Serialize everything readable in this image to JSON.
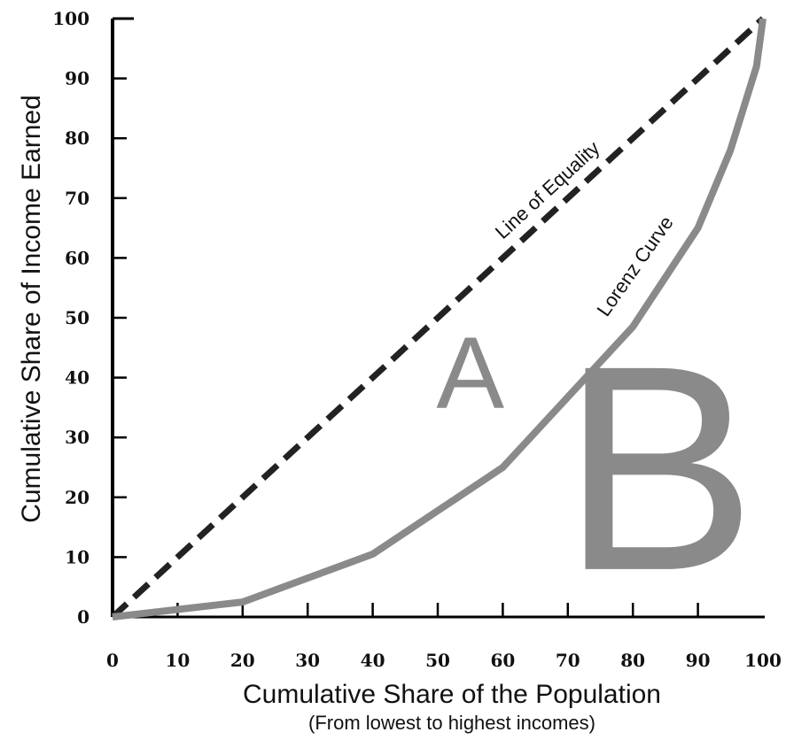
{
  "chart_data": {
    "type": "line",
    "xlabel": "Cumulative Share of the Population",
    "xlabel_sub": "(From lowest to highest incomes)",
    "ylabel": "Cumulative Share of Income Earned",
    "xlim": [
      0,
      100
    ],
    "ylim": [
      0,
      100
    ],
    "x_ticks": [
      0,
      10,
      20,
      30,
      40,
      50,
      60,
      70,
      80,
      90,
      100
    ],
    "y_ticks": [
      0,
      10,
      20,
      30,
      40,
      50,
      60,
      70,
      80,
      90,
      100
    ],
    "grid": false,
    "series": [
      {
        "name": "Line of Equality",
        "style": "dashed",
        "color": "#222222",
        "x": [
          0,
          100
        ],
        "y": [
          0,
          100
        ]
      },
      {
        "name": "Lorenz Curve",
        "style": "solid",
        "color": "#8a8a8a",
        "x": [
          0,
          20,
          40,
          60,
          80,
          90,
          95,
          99,
          100
        ],
        "y": [
          0,
          2.5,
          10.5,
          25,
          48.5,
          65,
          78,
          92,
          100
        ]
      }
    ],
    "annotations": [
      {
        "text": "A",
        "x": 55,
        "y": 35
      },
      {
        "text": "B",
        "x": 84,
        "y": 8
      }
    ]
  }
}
